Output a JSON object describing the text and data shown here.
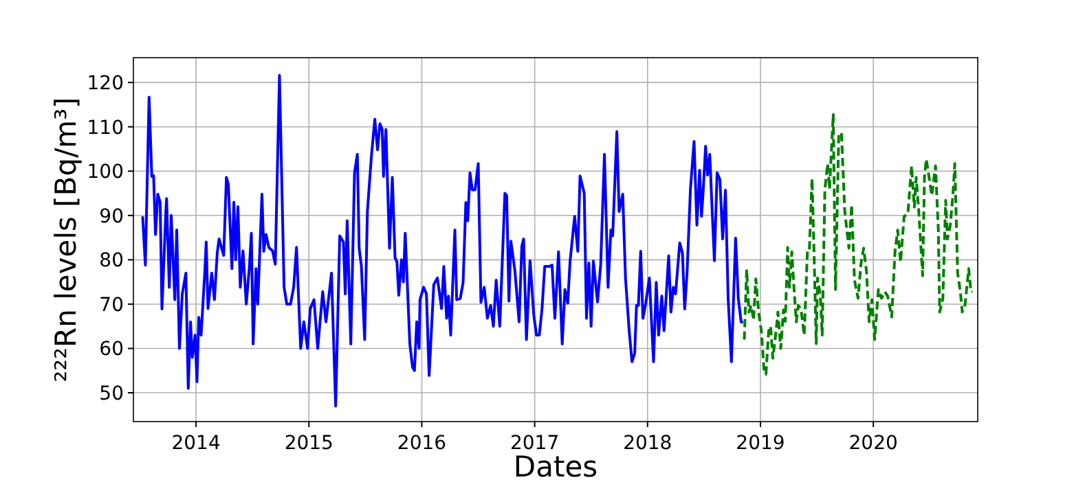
{
  "chart_data": {
    "type": "line",
    "xlabel": "Dates",
    "ylabel": "²²²Rn levels [Bq/m³]",
    "xlim": [
      2013.445,
      2020.925
    ],
    "ylim": [
      43.5,
      125.6
    ],
    "xticks": [
      2014,
      2015,
      2016,
      2017,
      2018,
      2019,
      2020
    ],
    "yticks": [
      50,
      60,
      70,
      80,
      90,
      100,
      110,
      120
    ],
    "grid": true,
    "series": [
      {
        "color": "#0000ff",
        "line_style": "solid",
        "x": [
          2013.527,
          2013.551,
          2013.584,
          2013.608,
          2013.624,
          2013.641,
          2013.661,
          2013.682,
          2013.698,
          2013.731,
          2013.739,
          2013.763,
          2013.78,
          2013.812,
          2013.829,
          2013.853,
          2013.878,
          2013.91,
          2013.931,
          2013.951,
          2013.967,
          2013.992,
          2014.008,
          2014.024,
          2014.045,
          2014.078,
          2014.09,
          2014.106,
          2014.139,
          2014.163,
          2014.188,
          2014.204,
          2014.245,
          2014.269,
          2014.286,
          2014.318,
          2014.335,
          2014.351,
          2014.371,
          2014.392,
          2014.416,
          2014.445,
          2014.473,
          2014.49,
          2014.506,
          2014.531,
          2014.547,
          2014.584,
          2014.6,
          2014.62,
          2014.645,
          2014.678,
          2014.702,
          2014.739,
          2014.78,
          2014.804,
          2014.837,
          2014.865,
          2014.89,
          2014.927,
          2014.955,
          2014.988,
          2015.012,
          2015.045,
          2015.078,
          2015.122,
          2015.151,
          2015.2,
          2015.237,
          2015.273,
          2015.306,
          2015.322,
          2015.339,
          2015.371,
          2015.404,
          2015.429,
          2015.445,
          2015.465,
          2015.494,
          2015.518,
          2015.555,
          2015.584,
          2015.608,
          2015.629,
          2015.649,
          2015.661,
          2015.682,
          2015.714,
          2015.739,
          2015.763,
          2015.78,
          2015.796,
          2015.82,
          2015.837,
          2015.853,
          2015.894,
          2015.918,
          2015.935,
          2015.955,
          2015.976,
          2015.984,
          2016.016,
          2016.041,
          2016.065,
          2016.106,
          2016.138,
          2016.175,
          2016.195,
          2016.22,
          2016.236,
          2016.256,
          2016.293,
          2016.309,
          2016.341,
          2016.366,
          2016.39,
          2016.407,
          2016.427,
          2016.447,
          2016.472,
          2016.5,
          2016.524,
          2016.553,
          2016.581,
          2016.61,
          2016.634,
          2016.659,
          2016.691,
          2016.736,
          2016.752,
          2016.772,
          2016.789,
          2016.825,
          2016.862,
          2016.886,
          2016.902,
          2016.927,
          2016.959,
          2016.992,
          2017.016,
          2017.041,
          2017.065,
          2017.089,
          2017.13,
          2017.154,
          2017.179,
          2017.211,
          2017.244,
          2017.268,
          2017.293,
          2017.313,
          2017.354,
          2017.382,
          2017.402,
          2017.439,
          2017.459,
          2017.48,
          2017.5,
          2017.52,
          2017.557,
          2017.585,
          2017.618,
          2017.65,
          2017.675,
          2017.691,
          2017.728,
          2017.748,
          2017.78,
          2017.805,
          2017.837,
          2017.862,
          2017.886,
          2017.902,
          2017.919,
          2017.939,
          2017.959,
          2017.984,
          2018.016,
          2018.053,
          2018.077,
          2018.098,
          2018.126,
          2018.146,
          2018.187,
          2018.207,
          2018.228,
          2018.248,
          2018.285,
          2018.309,
          2018.329,
          2018.35,
          2018.38,
          2018.412,
          2018.437,
          2018.461,
          2018.478,
          2018.494,
          2018.514,
          2018.531,
          2018.551,
          2018.571,
          2018.592,
          2018.616,
          2018.641,
          2018.665,
          2018.69,
          2018.714,
          2018.743,
          2018.78,
          2018.804,
          2018.829,
          2018.845
        ],
        "values": [
          89.8,
          78.8,
          116.7,
          98.8,
          99,
          85.7,
          94.8,
          93,
          68.9,
          90,
          93.8,
          73.8,
          90,
          71,
          86.7,
          60,
          72.3,
          77,
          51,
          66,
          58,
          63,
          52.5,
          67,
          63,
          77.4,
          84,
          69,
          77,
          71,
          81.6,
          84.7,
          81,
          98.6,
          97,
          78,
          93,
          80,
          92,
          73.8,
          82,
          70,
          78.5,
          86,
          61,
          78,
          70,
          94.8,
          81.9,
          85.7,
          82.8,
          82,
          79,
          121.6,
          73.8,
          70,
          70,
          73.8,
          82.8,
          60,
          66,
          60,
          69,
          71,
          60,
          72.8,
          66,
          77,
          47,
          85.4,
          84,
          72.3,
          88.8,
          61,
          99.6,
          103.8,
          82.6,
          78.5,
          62,
          90.9,
          103.8,
          111.7,
          104.8,
          110.7,
          109.4,
          98.8,
          109.4,
          82.6,
          98.6,
          80.5,
          79.5,
          72,
          80,
          75,
          86,
          61,
          55.8,
          55,
          66,
          60,
          71,
          73.8,
          72.3,
          53.9,
          74.4,
          75.9,
          69,
          78.5,
          66.8,
          71.8,
          63,
          86.7,
          71,
          71.3,
          74.9,
          92.9,
          88.8,
          99.6,
          95.8,
          95.8,
          101.7,
          70.4,
          73.8,
          66.8,
          69.7,
          65,
          75.4,
          65,
          95,
          94.5,
          70.7,
          84.2,
          77.5,
          66,
          83,
          84.7,
          62,
          79.8,
          67.6,
          63,
          63,
          68.9,
          78.5,
          78.5,
          78.8,
          66.8,
          81.8,
          61,
          73.3,
          70.2,
          79.5,
          89.8,
          81.9,
          98.9,
          95,
          66.8,
          79.3,
          65,
          79.7,
          70.5,
          79,
          103.8,
          73.8,
          86.7,
          85.4,
          108.9,
          90.9,
          94.8,
          75.7,
          64,
          57,
          58.9,
          69.7,
          69.7,
          81.9,
          66.8,
          70.2,
          75.9,
          57,
          74.9,
          63,
          71.8,
          64,
          80.9,
          68.2,
          73.8,
          72.3,
          83.8,
          81.5,
          68.9,
          77,
          96,
          106.7,
          87.8,
          100.2,
          89.8,
          96,
          105.6,
          99.1,
          103.8,
          91.9,
          79.8,
          99.6,
          98.1,
          84.7,
          95.7,
          71.3,
          57,
          84.9,
          71.3,
          66,
          65.8
        ]
      },
      {
        "color": "#008000",
        "line_style": "dashed",
        "x": [
          2018.857,
          2018.878,
          2018.898,
          2018.918,
          2018.939,
          2018.959,
          2018.984,
          2019.008,
          2019.033,
          2019.049,
          2019.073,
          2019.09,
          2019.11,
          2019.139,
          2019.155,
          2019.18,
          2019.204,
          2019.22,
          2019.241,
          2019.257,
          2019.278,
          2019.298,
          2019.318,
          2019.335,
          2019.359,
          2019.388,
          2019.416,
          2019.433,
          2019.457,
          2019.473,
          2019.494,
          2019.506,
          2019.531,
          2019.547,
          2019.571,
          2019.596,
          2019.612,
          2019.645,
          2019.665,
          2019.694,
          2019.718,
          2019.747,
          2019.784,
          2019.808,
          2019.833,
          2019.865,
          2019.89,
          2019.914,
          2019.939,
          2019.963,
          2019.988,
          2020.012,
          2020.045,
          2020.073,
          2020.102,
          2020.127,
          2020.163,
          2020.192,
          2020.216,
          2020.241,
          2020.273,
          2020.306,
          2020.339,
          2020.363,
          2020.38,
          2020.404,
          2020.437,
          2020.453,
          2020.469,
          2020.494,
          2020.518,
          2020.551,
          2020.576,
          2020.588,
          2020.616,
          2020.641,
          2020.657,
          2020.682,
          2020.706,
          2020.722,
          2020.747,
          2020.771,
          2020.788,
          2020.812,
          2020.845,
          2020.865,
          2020.878
        ],
        "values": [
          62,
          77.8,
          68.2,
          69.7,
          66.4,
          75.7,
          68.2,
          64,
          54.7,
          54.2,
          64,
          65,
          57.8,
          64,
          68.2,
          60,
          68.7,
          66.1,
          82.8,
          73.8,
          81.8,
          73.3,
          66,
          69.7,
          68.9,
          63,
          81.9,
          81.9,
          98.3,
          83.6,
          61.1,
          75.9,
          71.8,
          63,
          96,
          101.7,
          96,
          112.8,
          73.3,
          108.4,
          108.6,
          90.9,
          82.6,
          92.4,
          75.4,
          71.3,
          79,
          82.6,
          77.5,
          66,
          71,
          62,
          73.3,
          71.3,
          72.8,
          71.8,
          67.1,
          81.9,
          86.7,
          79.5,
          89.8,
          90.4,
          101.2,
          91.9,
          98.6,
          90.4,
          76.4,
          98.6,
          102.7,
          98.6,
          94.5,
          101.2,
          86.7,
          68.2,
          71.3,
          93.4,
          84.7,
          87.8,
          95,
          101.7,
          77,
          72.8,
          68.2,
          69.7,
          78,
          72.8,
          72.8
        ]
      }
    ]
  }
}
